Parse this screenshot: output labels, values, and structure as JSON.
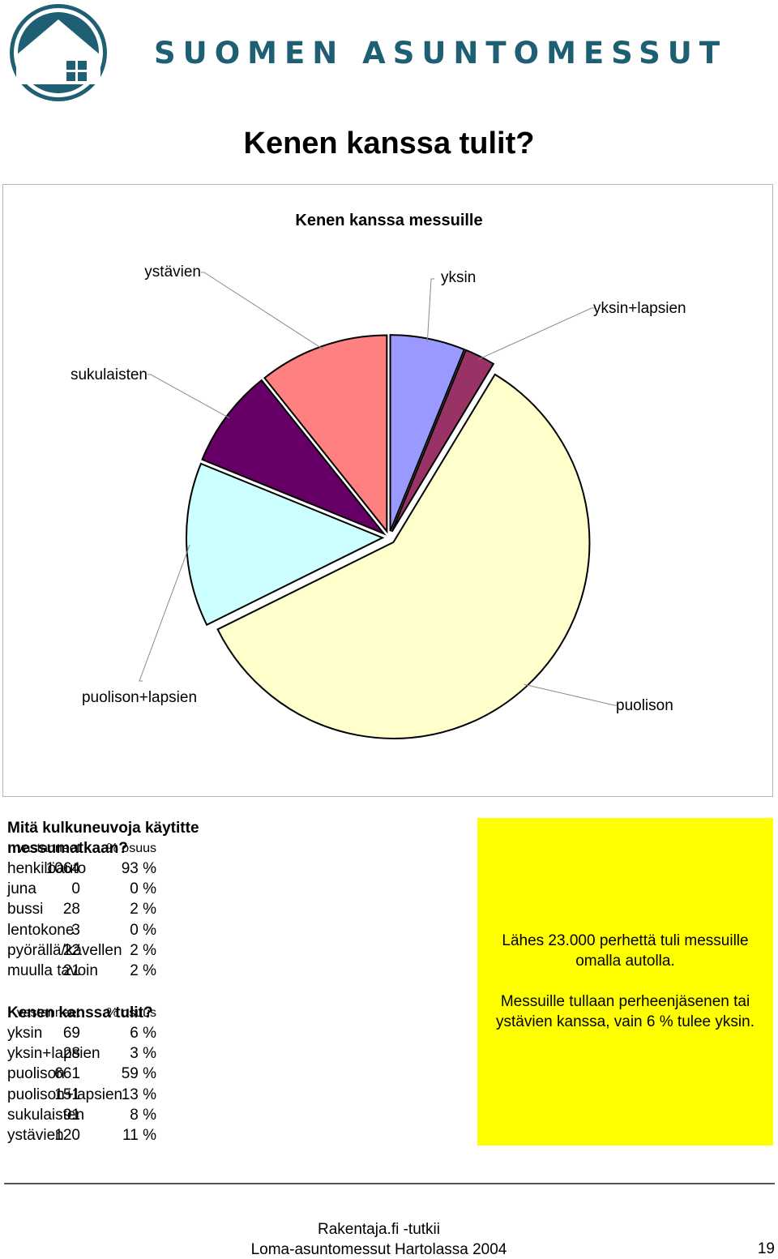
{
  "header": {
    "brand": "SUOMEN ASUNTOMESSUT"
  },
  "page_title": "Kenen kanssa tulit?",
  "chart_data": {
    "type": "pie",
    "title": "Kenen kanssa messuille",
    "slices": [
      {
        "label": "yksin",
        "value": 69,
        "color": "#9999ff"
      },
      {
        "label": "yksin+lapsien",
        "value": 28,
        "color": "#993366"
      },
      {
        "label": "puolison",
        "value": 661,
        "color": "#ffffcc"
      },
      {
        "label": "puolison+lapsien",
        "value": 151,
        "color": "#ccffff"
      },
      {
        "label": "sukulaisten",
        "value": 91,
        "color": "#660066"
      },
      {
        "label": "ystävien",
        "value": 120,
        "color": "#ff8080"
      }
    ]
  },
  "transport": {
    "title_line1": "Mitä kulkuneuvoja käytitte",
    "title_line2": "messumatkaan?",
    "col_count": "vastanneet",
    "col_pct": "% osuus",
    "rows": [
      {
        "label": "henkilöauto",
        "count": "1064",
        "pct": "93 %"
      },
      {
        "label": "juna",
        "count": "0",
        "pct": "0 %"
      },
      {
        "label": "bussi",
        "count": "28",
        "pct": "2 %"
      },
      {
        "label": "lentokone",
        "count": "3",
        "pct": "0 %"
      },
      {
        "label": "pyörällä/kävellen",
        "count": "22",
        "pct": "2 %"
      },
      {
        "label": "muulla tavoin",
        "count": "21",
        "pct": "2 %"
      }
    ]
  },
  "company": {
    "title": "Kenen kanssa tulit?",
    "col_count": "vastanneet",
    "col_pct": "% osuus",
    "rows": [
      {
        "label": "yksin",
        "count": "69",
        "pct": "6 %"
      },
      {
        "label": "yksin+lapsien",
        "count": "28",
        "pct": "3 %"
      },
      {
        "label": "puolison",
        "count": "661",
        "pct": "59 %"
      },
      {
        "label": "puolison+lapsien",
        "count": "151",
        "pct": "13 %"
      },
      {
        "label": "sukulaisten",
        "count": "91",
        "pct": "8 %"
      },
      {
        "label": "ystävien",
        "count": "120",
        "pct": "11 %"
      }
    ]
  },
  "note": {
    "line1": "Lähes 23.000 perhettä tuli messuille",
    "line2": "omalla autolla.",
    "line3": "Messuille tullaan perheenjäsenen tai",
    "line4": "ystävien kanssa, vain 6 % tulee yksin."
  },
  "footer": {
    "line1": "Rakentaja.fi -tutkii",
    "line2": "Loma-asuntomessut Hartolassa 2004",
    "page_number": "19"
  },
  "colors": {
    "brand": "#1e5f73",
    "note_bg": "#ffff00"
  }
}
